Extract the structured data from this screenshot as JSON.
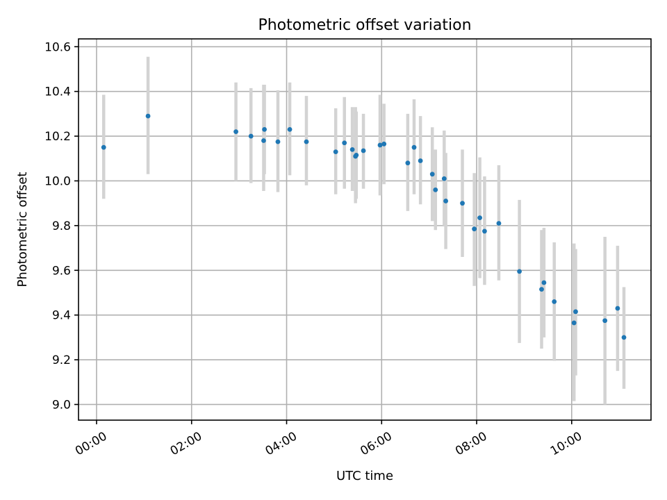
{
  "chart_data": {
    "type": "scatter",
    "title": "Photometric offset variation",
    "xlabel": "UTC time",
    "ylabel": "Photometric offset",
    "x_unit": "hours UTC",
    "xlim": [
      -0.38,
      11.67
    ],
    "ylim": [
      8.93,
      10.635
    ],
    "x_ticks": [
      {
        "value": 0,
        "label": "00:00"
      },
      {
        "value": 2,
        "label": "02:00"
      },
      {
        "value": 4,
        "label": "04:00"
      },
      {
        "value": 6,
        "label": "06:00"
      },
      {
        "value": 8,
        "label": "08:00"
      },
      {
        "value": 10,
        "label": "10:00"
      }
    ],
    "y_ticks": [
      {
        "value": 9.0,
        "label": "9.0"
      },
      {
        "value": 9.2,
        "label": "9.2"
      },
      {
        "value": 9.4,
        "label": "9.4"
      },
      {
        "value": 9.6,
        "label": "9.6"
      },
      {
        "value": 9.8,
        "label": "9.8"
      },
      {
        "value": 10.0,
        "label": "10.0"
      },
      {
        "value": 10.2,
        "label": "10.2"
      },
      {
        "value": 10.4,
        "label": "10.4"
      },
      {
        "value": 10.6,
        "label": "10.6"
      }
    ],
    "grid": true,
    "marker_color": "#1f77b4",
    "errorbar_color": "#d3d3d3",
    "points": [
      {
        "t": "00:09",
        "y": 10.15,
        "lo": 9.92,
        "hi": 10.385
      },
      {
        "t": "01:05",
        "y": 10.29,
        "lo": 10.03,
        "hi": 10.555
      },
      {
        "t": "02:56",
        "y": 10.22,
        "lo": 10.0,
        "hi": 10.44
      },
      {
        "t": "03:15",
        "y": 10.2,
        "lo": 9.99,
        "hi": 10.415
      },
      {
        "t": "03:31",
        "y": 10.18,
        "lo": 9.955,
        "hi": 10.43
      },
      {
        "t": "03:32",
        "y": 10.23,
        "lo": 10.03,
        "hi": 10.43
      },
      {
        "t": "03:49",
        "y": 10.175,
        "lo": 9.95,
        "hi": 10.405
      },
      {
        "t": "04:04",
        "y": 10.23,
        "lo": 10.025,
        "hi": 10.44
      },
      {
        "t": "04:25",
        "y": 10.175,
        "lo": 9.98,
        "hi": 10.38
      },
      {
        "t": "05:02",
        "y": 10.13,
        "lo": 9.94,
        "hi": 10.325
      },
      {
        "t": "05:13",
        "y": 10.17,
        "lo": 9.965,
        "hi": 10.375
      },
      {
        "t": "05:23",
        "y": 10.14,
        "lo": 9.955,
        "hi": 10.33
      },
      {
        "t": "05:27",
        "y": 10.11,
        "lo": 9.9,
        "hi": 10.33
      },
      {
        "t": "05:28",
        "y": 10.115,
        "lo": 9.92,
        "hi": 10.31
      },
      {
        "t": "05:37",
        "y": 10.135,
        "lo": 9.965,
        "hi": 10.3
      },
      {
        "t": "05:58",
        "y": 10.16,
        "lo": 9.935,
        "hi": 10.385
      },
      {
        "t": "06:03",
        "y": 10.165,
        "lo": 9.985,
        "hi": 10.345
      },
      {
        "t": "06:33",
        "y": 10.08,
        "lo": 9.865,
        "hi": 10.3
      },
      {
        "t": "06:41",
        "y": 10.15,
        "lo": 9.94,
        "hi": 10.365
      },
      {
        "t": "06:49",
        "y": 10.09,
        "lo": 9.895,
        "hi": 10.29
      },
      {
        "t": "07:04",
        "y": 10.03,
        "lo": 9.82,
        "hi": 10.24
      },
      {
        "t": "07:08",
        "y": 9.96,
        "lo": 9.78,
        "hi": 10.14
      },
      {
        "t": "07:19",
        "y": 10.01,
        "lo": 9.8,
        "hi": 10.225
      },
      {
        "t": "07:21",
        "y": 9.91,
        "lo": 9.695,
        "hi": 10.125
      },
      {
        "t": "07:42",
        "y": 9.9,
        "lo": 9.66,
        "hi": 10.14
      },
      {
        "t": "07:57",
        "y": 9.785,
        "lo": 9.53,
        "hi": 10.035
      },
      {
        "t": "08:04",
        "y": 9.835,
        "lo": 9.565,
        "hi": 10.105
      },
      {
        "t": "08:10",
        "y": 9.775,
        "lo": 9.535,
        "hi": 10.02
      },
      {
        "t": "08:28",
        "y": 9.81,
        "lo": 9.555,
        "hi": 10.07
      },
      {
        "t": "08:54",
        "y": 9.595,
        "lo": 9.275,
        "hi": 9.915
      },
      {
        "t": "09:22",
        "y": 9.515,
        "lo": 9.25,
        "hi": 9.78
      },
      {
        "t": "09:25",
        "y": 9.545,
        "lo": 9.3,
        "hi": 9.79
      },
      {
        "t": "09:38",
        "y": 9.46,
        "lo": 9.195,
        "hi": 9.725
      },
      {
        "t": "10:03",
        "y": 9.365,
        "lo": 9.015,
        "hi": 9.72
      },
      {
        "t": "10:05",
        "y": 9.415,
        "lo": 9.13,
        "hi": 9.695
      },
      {
        "t": "10:42",
        "y": 9.375,
        "lo": 9.0,
        "hi": 9.75
      },
      {
        "t": "10:58",
        "y": 9.43,
        "lo": 9.15,
        "hi": 9.71
      },
      {
        "t": "11:06",
        "y": 9.3,
        "lo": 9.07,
        "hi": 9.525
      }
    ]
  }
}
